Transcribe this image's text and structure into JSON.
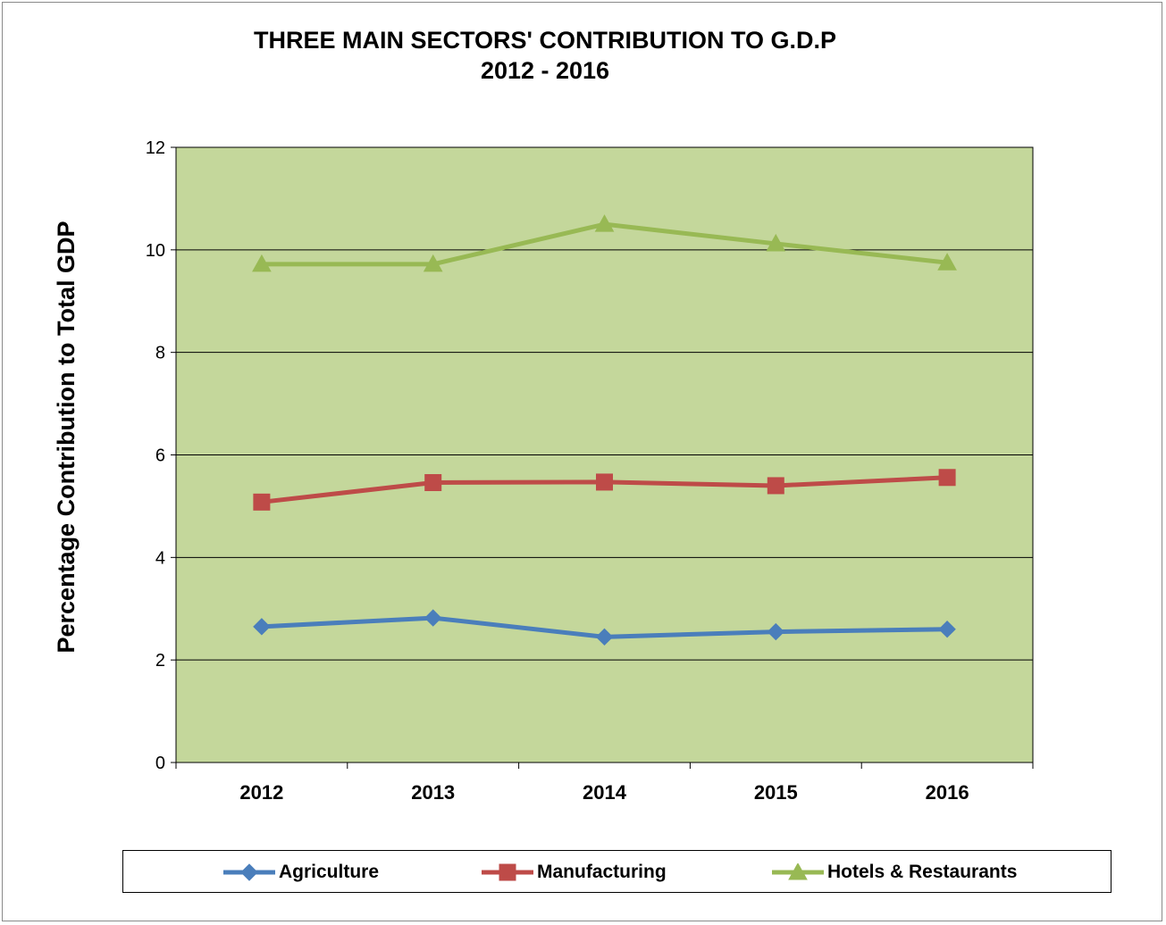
{
  "chart_data": {
    "type": "line",
    "title": "THREE MAIN SECTORS' CONTRIBUTION TO G.D.P",
    "subtitle": "2012 - 2016",
    "xlabel": "",
    "ylabel": "Percentage Contribution to Total GDP",
    "categories": [
      "2012",
      "2013",
      "2014",
      "2015",
      "2016"
    ],
    "ylim": [
      0,
      12
    ],
    "yticks": [
      "0",
      "2",
      "4",
      "6",
      "8",
      "10",
      "12"
    ],
    "grid": true,
    "legend_position": "bottom",
    "plot_background": "#c4d79b",
    "series": [
      {
        "name": "Agriculture",
        "color": "#4a7ebb",
        "marker": "diamond",
        "values": [
          2.65,
          2.82,
          2.45,
          2.55,
          2.6
        ]
      },
      {
        "name": "Manufacturing",
        "color": "#be4b48",
        "marker": "square",
        "values": [
          5.08,
          5.46,
          5.47,
          5.4,
          5.56
        ]
      },
      {
        "name": "Hotels & Restaurants",
        "color": "#98b954",
        "marker": "triangle",
        "values": [
          9.72,
          9.72,
          10.5,
          10.12,
          9.75
        ]
      }
    ]
  }
}
